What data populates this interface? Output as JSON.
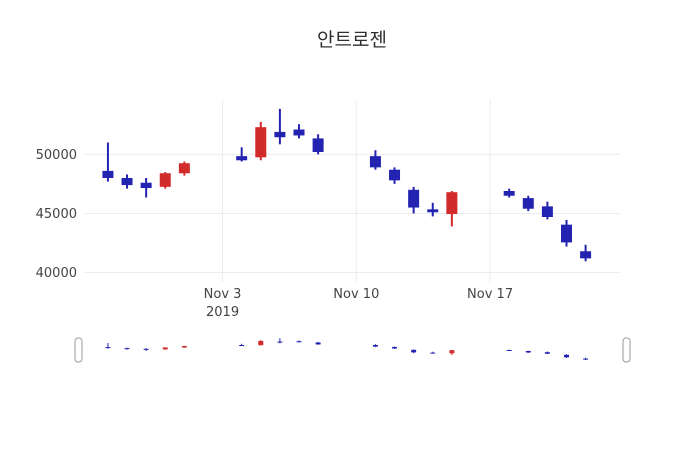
{
  "chart_data": {
    "type": "candlestick",
    "title": "안트로젠",
    "xlabel": "",
    "ylabel": "",
    "grid": true,
    "legend": "none",
    "rangeslider": true,
    "up_color": "#d22b2b",
    "down_color": "#2323b2",
    "grid_color": "#ececec",
    "axis_text_color": "#444444",
    "handle_stroke": "#999999",
    "yticks": [
      "50000",
      "45000",
      "40000"
    ],
    "ytick_values": [
      50000,
      45000,
      40000
    ],
    "ylim": [
      39200,
      54600
    ],
    "x_range": [
      "2019-10-27",
      "2019-11-23"
    ],
    "xticks": [
      {
        "label": "Nov 3",
        "sublabel": "2019",
        "date": "2019-11-03"
      },
      {
        "label": "Nov 10",
        "sublabel": "",
        "date": "2019-11-10"
      },
      {
        "label": "Nov 17",
        "sublabel": "",
        "date": "2019-11-17"
      }
    ],
    "candles": [
      {
        "date": "2019-10-28",
        "open": 48600,
        "high": 51000,
        "low": 47700,
        "close": 48000
      },
      {
        "date": "2019-10-29",
        "open": 48000,
        "high": 48300,
        "low": 47100,
        "close": 47400
      },
      {
        "date": "2019-10-30",
        "open": 47600,
        "high": 48000,
        "low": 46350,
        "close": 47150
      },
      {
        "date": "2019-10-31",
        "open": 47250,
        "high": 48500,
        "low": 47100,
        "close": 48400
      },
      {
        "date": "2019-11-01",
        "open": 48400,
        "high": 49400,
        "low": 48200,
        "close": 49250
      },
      {
        "date": "2019-11-04",
        "open": 49850,
        "high": 50600,
        "low": 49400,
        "close": 49500
      },
      {
        "date": "2019-11-05",
        "open": 49750,
        "high": 52750,
        "low": 49500,
        "close": 52300
      },
      {
        "date": "2019-11-06",
        "open": 51900,
        "high": 53850,
        "low": 50850,
        "close": 51450
      },
      {
        "date": "2019-11-07",
        "open": 52100,
        "high": 52550,
        "low": 51350,
        "close": 51600
      },
      {
        "date": "2019-11-08",
        "open": 51350,
        "high": 51700,
        "low": 50000,
        "close": 50200
      },
      {
        "date": "2019-11-11",
        "open": 49850,
        "high": 50350,
        "low": 48700,
        "close": 48900
      },
      {
        "date": "2019-11-12",
        "open": 48700,
        "high": 48900,
        "low": 47500,
        "close": 47800
      },
      {
        "date": "2019-11-13",
        "open": 47000,
        "high": 47250,
        "low": 45000,
        "close": 45500
      },
      {
        "date": "2019-11-14",
        "open": 45350,
        "high": 45900,
        "low": 44750,
        "close": 45100
      },
      {
        "date": "2019-11-15",
        "open": 44950,
        "high": 46900,
        "low": 43900,
        "close": 46800
      },
      {
        "date": "2019-11-18",
        "open": 46900,
        "high": 47100,
        "low": 46350,
        "close": 46500
      },
      {
        "date": "2019-11-19",
        "open": 46300,
        "high": 46500,
        "low": 45200,
        "close": 45400
      },
      {
        "date": "2019-11-20",
        "open": 45600,
        "high": 46000,
        "low": 44500,
        "close": 44700
      },
      {
        "date": "2019-11-21",
        "open": 44050,
        "high": 44450,
        "low": 42200,
        "close": 42550
      },
      {
        "date": "2019-11-22",
        "open": 41800,
        "high": 42350,
        "low": 40950,
        "close": 41200
      }
    ]
  }
}
